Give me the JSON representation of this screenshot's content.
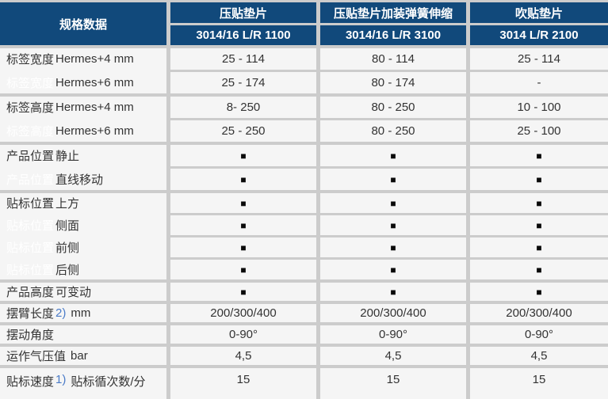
{
  "colors": {
    "header_blue": "#11497b",
    "cell_background": "#f5f5f5",
    "grid_gap_gray": "#cccccc",
    "body_text": "#333333",
    "ghost_label": "#ffffff",
    "footnote_marker_blue": "#4a7bc8"
  },
  "table": {
    "spec_header": "规格数据",
    "columns": [
      {
        "name": "压贴垫片",
        "model": "3014/16 L/R 1100"
      },
      {
        "name": "压贴垫片加装弹簧伸缩",
        "model": "3014/16 L/R 3100"
      },
      {
        "name": "吹贴垫片",
        "model": "3014 L/R 2100"
      }
    ],
    "square_glyph": "■",
    "groups": [
      {
        "rows": [
          {
            "label": "标签宽度",
            "ghost": false,
            "sublabel": "Hermes+4 mm",
            "values": [
              "25 - 114",
              "80 - 114",
              "25 - 114"
            ]
          },
          {
            "label": "标签宽度",
            "ghost": true,
            "sublabel": "Hermes+6 mm",
            "values": [
              "25 - 174",
              "80 - 174",
              "-"
            ]
          }
        ]
      },
      {
        "rows": [
          {
            "label": "标签高度",
            "ghost": false,
            "sublabel": "Hermes+4 mm",
            "values": [
              "8- 250",
              "80 - 250",
              "10 - 100"
            ]
          },
          {
            "label": "标签高度",
            "ghost": true,
            "sublabel": "Hermes+6 mm",
            "values": [
              "25 - 250",
              "80 - 250",
              "25 - 100"
            ]
          }
        ]
      },
      {
        "rows": [
          {
            "label": "产品位置",
            "ghost": false,
            "sublabel": "静止",
            "values": [
              "■",
              "■",
              "■"
            ]
          },
          {
            "label": "产品位置",
            "ghost": true,
            "sublabel": "直线移动",
            "values": [
              "■",
              "■",
              "■"
            ]
          }
        ]
      },
      {
        "rows": [
          {
            "label": "贴标位置",
            "ghost": false,
            "sublabel": "上方",
            "values": [
              "■",
              "■",
              "■"
            ]
          },
          {
            "label": "贴标位置",
            "ghost": true,
            "sublabel": "侧面",
            "values": [
              "■",
              "■",
              "■"
            ]
          },
          {
            "label": "贴标位置",
            "ghost": true,
            "sublabel": "前侧",
            "values": [
              "■",
              "■",
              "■"
            ]
          },
          {
            "label": "贴标位置",
            "ghost": true,
            "sublabel": "后侧",
            "values": [
              "■",
              "■",
              "■"
            ]
          }
        ]
      },
      {
        "rows": [
          {
            "label": "产品高度",
            "ghost": false,
            "sublabel": "可变动",
            "values": [
              "■",
              "■",
              "■"
            ]
          }
        ]
      },
      {
        "rows": [
          {
            "label": "摆臂长度",
            "marker": "2)",
            "suffix": "mm",
            "ghost": false,
            "sublabel": "",
            "values": [
              "200/300/400",
              "200/300/400",
              "200/300/400"
            ]
          }
        ]
      },
      {
        "rows": [
          {
            "label": "摆动角度",
            "ghost": false,
            "sublabel": "",
            "values": [
              "0-90°",
              "0-90°",
              "0-90°"
            ]
          }
        ]
      },
      {
        "rows": [
          {
            "label": "运作气压值",
            "suffix": "bar",
            "ghost": false,
            "sublabel": "",
            "values": [
              "4,5",
              "4,5",
              "4,5"
            ]
          }
        ]
      },
      {
        "rows": [
          {
            "label": "贴标速度",
            "marker": "1)",
            "suffix": "贴标循次数/分",
            "ghost": false,
            "sublabel": "",
            "values": [
              "15",
              "15",
              "15"
            ]
          }
        ]
      }
    ]
  }
}
